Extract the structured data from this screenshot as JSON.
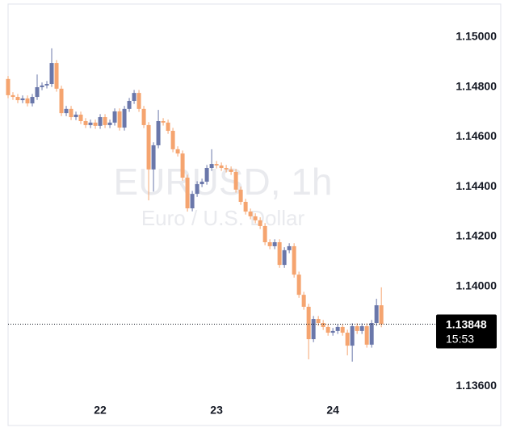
{
  "chart_data": {
    "type": "candlestick",
    "title": "EURUSD, 1h",
    "subtitle": "Euro / U.S. Dollar",
    "up_color": "#6a77aa",
    "down_color": "#f5a46f",
    "x": [
      -19,
      -18,
      -17,
      -16,
      -15,
      -14,
      -13,
      -12,
      -11,
      -10,
      -9,
      -8,
      -7,
      -6,
      -5,
      -4,
      -3,
      -2,
      -1,
      0,
      1,
      2,
      3,
      4,
      5,
      6,
      7,
      8,
      9,
      10,
      11,
      12,
      13,
      14,
      15,
      16,
      17,
      18,
      19,
      20,
      21,
      22,
      23,
      24,
      25,
      26,
      27,
      28,
      29,
      30,
      31,
      32,
      33,
      34,
      35,
      36,
      37,
      38,
      39,
      40,
      41,
      42,
      43,
      44,
      45,
      46,
      47,
      48,
      49,
      50,
      51,
      52,
      53,
      54,
      55,
      56,
      57,
      58
    ],
    "open": [
      1.14832,
      1.14767,
      1.1476,
      1.14747,
      1.14754,
      1.14734,
      1.1476,
      1.14799,
      1.14806,
      1.14812,
      1.14896,
      1.14793,
      1.14695,
      1.14712,
      1.14679,
      1.14689,
      1.14663,
      1.14647,
      1.14657,
      1.14644,
      1.14679,
      1.14647,
      1.14657,
      1.14702,
      1.14637,
      1.14712,
      1.14744,
      1.14776,
      1.14712,
      1.14647,
      1.14469,
      1.14566,
      1.14663,
      1.14657,
      1.14624,
      1.1455,
      1.14533,
      1.14436,
      1.14313,
      1.14371,
      1.1441,
      1.1442,
      1.14475,
      1.14491,
      1.14485,
      1.14475,
      1.14469,
      1.14459,
      1.14388,
      1.14339,
      1.143,
      1.14281,
      1.14265,
      1.14242,
      1.14177,
      1.14161,
      1.14177,
      1.14086,
      1.14145,
      1.14161,
      1.14047,
      1.13966,
      1.13918,
      1.13788,
      1.13869,
      1.13853,
      1.13837,
      1.13814,
      1.13821,
      1.13837,
      1.13814,
      1.13762,
      1.1384,
      1.13821,
      1.1384,
      1.13766,
      1.13853,
      1.13924
    ],
    "high": [
      1.14844,
      1.14779,
      1.14772,
      1.14766,
      1.14766,
      1.14772,
      1.1485,
      1.14818,
      1.14824,
      1.14955,
      1.14908,
      1.14805,
      1.14724,
      1.14724,
      1.14701,
      1.14701,
      1.14675,
      1.14669,
      1.14669,
      1.14691,
      1.14691,
      1.14669,
      1.14714,
      1.14714,
      1.14724,
      1.14756,
      1.14788,
      1.14788,
      1.14724,
      1.14659,
      1.14578,
      1.14708,
      1.14675,
      1.14669,
      1.14636,
      1.14562,
      1.14545,
      1.14448,
      1.14383,
      1.14422,
      1.14432,
      1.14487,
      1.1455,
      1.14503,
      1.14497,
      1.14487,
      1.14481,
      1.14471,
      1.144,
      1.14351,
      1.14312,
      1.14293,
      1.14277,
      1.14254,
      1.14189,
      1.14189,
      1.14189,
      1.14157,
      1.14173,
      1.14173,
      1.14059,
      1.13978,
      1.1393,
      1.13881,
      1.13881,
      1.13865,
      1.13849,
      1.13833,
      1.13849,
      1.13849,
      1.13826,
      1.13852,
      1.13852,
      1.13852,
      1.13852,
      1.13865,
      1.1395,
      1.13996
    ],
    "low": [
      1.14755,
      1.14748,
      1.14735,
      1.14735,
      1.14722,
      1.14722,
      1.14748,
      1.14787,
      1.14794,
      1.148,
      1.14781,
      1.14683,
      1.14683,
      1.14667,
      1.14667,
      1.14651,
      1.14635,
      1.14635,
      1.14632,
      1.14632,
      1.14635,
      1.14635,
      1.14645,
      1.14625,
      1.14625,
      1.147,
      1.14732,
      1.147,
      1.14635,
      1.14345,
      1.1438,
      1.14554,
      1.14645,
      1.14612,
      1.14538,
      1.14521,
      1.14424,
      1.143,
      1.14301,
      1.14359,
      1.14398,
      1.14408,
      1.14463,
      1.14473,
      1.14463,
      1.14457,
      1.14447,
      1.14376,
      1.14327,
      1.14288,
      1.14269,
      1.14253,
      1.1423,
      1.14165,
      1.14149,
      1.14149,
      1.14074,
      1.14074,
      1.14133,
      1.14035,
      1.13954,
      1.13906,
      1.13707,
      1.13776,
      1.13841,
      1.13825,
      1.13802,
      1.13802,
      1.13809,
      1.13802,
      1.13723,
      1.13698,
      1.13809,
      1.13809,
      1.13754,
      1.13754,
      1.13841,
      1.13836
    ],
    "close": [
      1.14767,
      1.1476,
      1.14747,
      1.14754,
      1.14734,
      1.1476,
      1.14799,
      1.14806,
      1.14812,
      1.14896,
      1.14793,
      1.14695,
      1.14712,
      1.14679,
      1.14689,
      1.14663,
      1.14647,
      1.14657,
      1.14644,
      1.14679,
      1.14647,
      1.14657,
      1.14702,
      1.14637,
      1.14712,
      1.14744,
      1.14776,
      1.14712,
      1.14647,
      1.14469,
      1.14566,
      1.14663,
      1.14657,
      1.14624,
      1.1455,
      1.14533,
      1.14436,
      1.14313,
      1.14371,
      1.1441,
      1.1442,
      1.14475,
      1.14491,
      1.14485,
      1.14475,
      1.14469,
      1.14459,
      1.14388,
      1.14339,
      1.143,
      1.14281,
      1.14265,
      1.14242,
      1.14177,
      1.14161,
      1.14177,
      1.14086,
      1.14145,
      1.14161,
      1.14047,
      1.13966,
      1.13918,
      1.13788,
      1.13869,
      1.13853,
      1.13837,
      1.13814,
      1.13821,
      1.13837,
      1.13814,
      1.13762,
      1.1384,
      1.13821,
      1.1384,
      1.13766,
      1.13853,
      1.13924,
      1.13848
    ],
    "xlim": [
      -19,
      69.3
    ],
    "xticks": [
      {
        "value": 0,
        "label": "22"
      },
      {
        "value": 24,
        "label": "23"
      },
      {
        "value": 48,
        "label": "24"
      }
    ],
    "ylim": [
      1.13555,
      1.15123
    ],
    "yticks": [
      {
        "value": 1.136,
        "label": "1.13600"
      },
      {
        "value": 1.14,
        "label": "1.14000"
      },
      {
        "value": 1.142,
        "label": "1.14200"
      },
      {
        "value": 1.144,
        "label": "1.14400"
      },
      {
        "value": 1.146,
        "label": "1.14600"
      },
      {
        "value": 1.148,
        "label": "1.14800"
      },
      {
        "value": 1.15,
        "label": "1.15000"
      }
    ],
    "last_price": 1.13848,
    "countdown": "15:53"
  }
}
